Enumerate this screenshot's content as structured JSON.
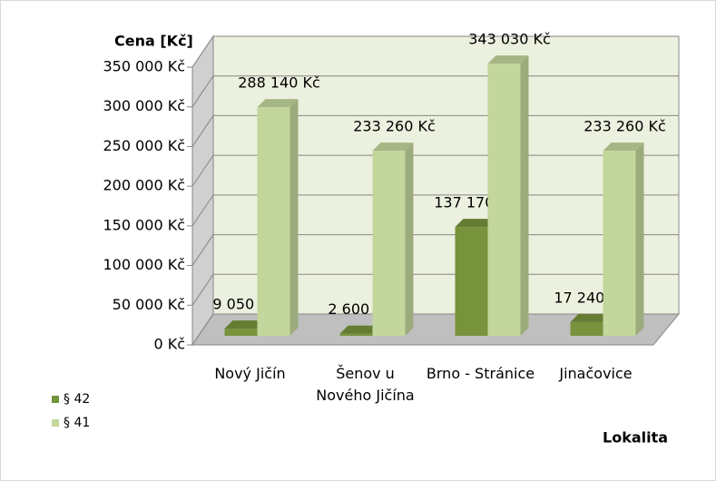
{
  "chart_data": {
    "type": "bar3d",
    "y_label": "Cena [Kč]",
    "x_label": "Lokalita",
    "categories": [
      "Nový Jičín",
      "Šenov u Nového Jičína",
      "Brno - Stránice",
      "Jinačovice"
    ],
    "series": [
      {
        "name": "§ 42",
        "color": "#77933c",
        "values": [
          9050,
          2600,
          137170,
          17240
        ],
        "value_labels": [
          "9 050 Kč",
          "2 600 Kč",
          "137 170 Kč",
          "17 240 Kč"
        ]
      },
      {
        "name": "§ 41",
        "color": "#c3d69b",
        "values": [
          288140,
          233260,
          343030,
          233260
        ],
        "value_labels": [
          "288 140 Kč",
          "233 260 Kč",
          "343 030 Kč",
          "233 260 Kč"
        ]
      }
    ],
    "ylim": [
      0,
      350000
    ],
    "yticks": [
      {
        "value": 0,
        "label": "0 Kč"
      },
      {
        "value": 50000,
        "label": "50 000 Kč"
      },
      {
        "value": 100000,
        "label": "100 000 Kč"
      },
      {
        "value": 150000,
        "label": "150 000 Kč"
      },
      {
        "value": 200000,
        "label": "200 000 Kč"
      },
      {
        "value": 250000,
        "label": "250 000 Kč"
      },
      {
        "value": 300000,
        "label": "300 000 Kč"
      },
      {
        "value": 350000,
        "label": "350 000 Kč"
      }
    ],
    "grid": true,
    "legend": "bottom-left"
  }
}
